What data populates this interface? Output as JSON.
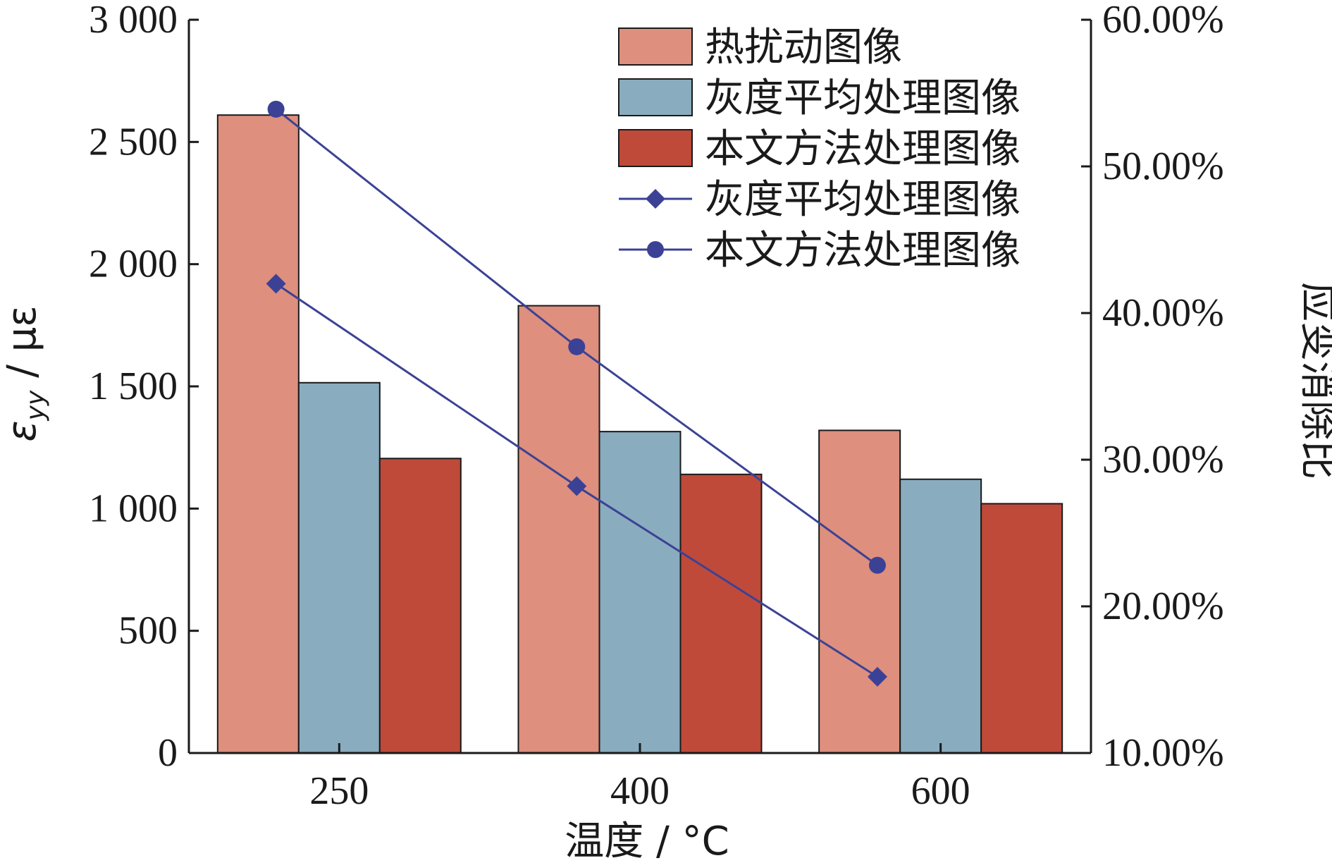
{
  "chart_data": {
    "type": "bar",
    "categories": [
      "250",
      "400",
      "600"
    ],
    "xlabel": "温度 / °C",
    "ylabel": "ε_yy / με",
    "ylabel_symbol": "ε",
    "ylabel_subscript": "yy",
    "ylabel_unit": " / με",
    "y2label": "应变消除比",
    "ylim": [
      0,
      3000
    ],
    "yticks": [
      0,
      500,
      1000,
      1500,
      2000,
      2500,
      3000
    ],
    "ytick_labels": [
      "0",
      "500",
      "1 000",
      "1 500",
      "2 000",
      "2 500",
      "3 000"
    ],
    "y2lim": [
      10,
      60
    ],
    "y2ticks": [
      10,
      20,
      30,
      40,
      50,
      60
    ],
    "y2tick_labels": [
      "10.00%",
      "20.00%",
      "30.00%",
      "40.00%",
      "50.00%",
      "60.00%"
    ],
    "grid": false,
    "legend_position": "top-right",
    "bar_series": [
      {
        "name": "热扰动图像",
        "color": "#de8f7e",
        "values": [
          2610,
          1830,
          1320
        ]
      },
      {
        "name": "灰度平均处理图像",
        "color": "#89acbf",
        "values": [
          1515,
          1315,
          1120
        ]
      },
      {
        "name": "本文方法处理图像",
        "color": "#bf4a3a",
        "values": [
          1205,
          1140,
          1020
        ]
      }
    ],
    "line_series": [
      {
        "name": "灰度平均处理图像",
        "axis": "right",
        "marker": "diamond",
        "color": "#3b4295",
        "values": [
          42.0,
          28.2,
          15.2
        ]
      },
      {
        "name": "本文方法处理图像",
        "axis": "right",
        "marker": "circle",
        "color": "#3b4295",
        "values": [
          53.9,
          37.7,
          22.8
        ]
      }
    ]
  }
}
